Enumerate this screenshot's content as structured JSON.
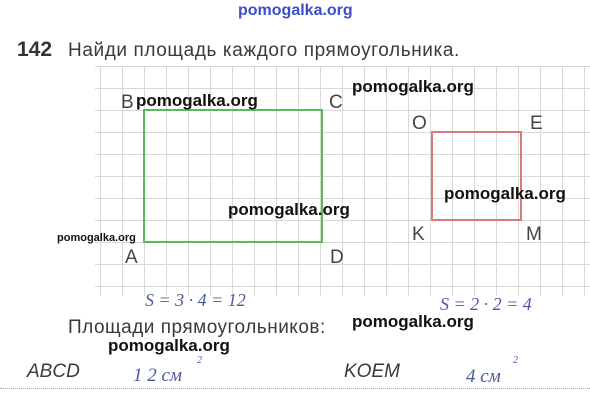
{
  "header": {
    "watermark": "pomogalka.org",
    "number": "142",
    "task": "Найди площадь каждого прямоугольника."
  },
  "figures": [
    {
      "vertices": [
        "B",
        "C",
        "A",
        "D"
      ],
      "formula": "S = 3 · 4 = 12"
    },
    {
      "vertices": [
        "O",
        "E",
        "K",
        "M"
      ],
      "formula": "S = 2 · 2 = 4"
    }
  ],
  "answers": {
    "title": "Площади прямоугольников:",
    "rows": [
      {
        "name": "ABCD",
        "value": "1 2 см",
        "exponent": "2"
      },
      {
        "name": "KOEM",
        "value": "4 см",
        "exponent": "2"
      }
    ]
  },
  "watermarks": [
    "pomogalka.org",
    "pomogalka.org",
    "pomogalka.org",
    "pomogalka.org",
    "pomogalka.org",
    "pomogalka.org",
    "pomogalka.org"
  ]
}
